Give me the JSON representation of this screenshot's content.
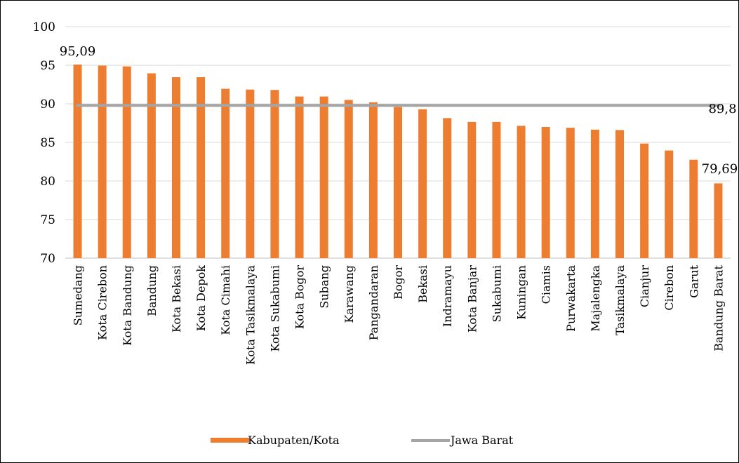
{
  "chart_data": {
    "type": "bar",
    "title": "",
    "xlabel": "",
    "ylabel": "",
    "ylim": [
      70,
      100
    ],
    "yticks": [
      70,
      75,
      80,
      85,
      90,
      95,
      100
    ],
    "grid": true,
    "legend_position": "bottom",
    "categories": [
      "Sumedang",
      "Kota Cirebon",
      "Kota Bandung",
      "Bandung",
      "Kota Bekasi",
      "Kota Depok",
      "Kota Cimahi",
      "Kota Tasikmalaya",
      "Kota Sukabumi",
      "Kota Bogor",
      "Subang",
      "Karawang",
      "Pangandaran",
      "Bogor",
      "Bekasi",
      "Indramayu",
      "Kota Banjar",
      "Sukabumi",
      "Kuningan",
      "Ciamis",
      "Purwakarta",
      "Majalengka",
      "Tasikmalaya",
      "Cianjur",
      "Cirebon",
      "Garut",
      "Bandung Barat"
    ],
    "series": [
      {
        "name": "Kabupaten/Kota",
        "type": "bar",
        "color": "#ED7D31",
        "values": [
          95.09,
          94.95,
          94.85,
          93.95,
          93.45,
          93.45,
          91.95,
          91.85,
          91.8,
          90.95,
          90.95,
          90.5,
          90.2,
          89.6,
          89.3,
          88.15,
          87.65,
          87.65,
          87.15,
          87.0,
          86.9,
          86.65,
          86.6,
          84.85,
          83.95,
          82.75,
          79.69
        ]
      },
      {
        "name": "Jawa Barat",
        "type": "line",
        "color": "#A5A5A5",
        "value": 89.8
      }
    ],
    "data_labels": [
      {
        "text": "95,09",
        "series": "Kabupaten/Kota",
        "category": "Sumedang"
      },
      {
        "text": "79,69",
        "series": "Kabupaten/Kota",
        "category": "Bandung Barat"
      },
      {
        "text": "89,8",
        "series": "Jawa Barat",
        "category": "Bandung Barat"
      }
    ]
  }
}
